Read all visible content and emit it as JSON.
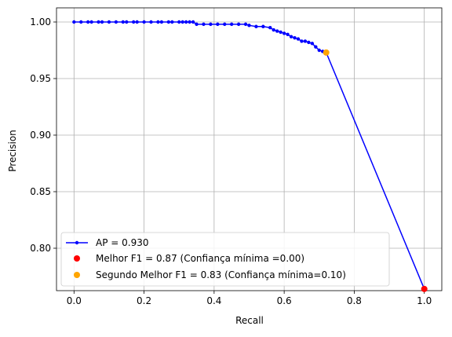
{
  "chart_data": {
    "type": "line",
    "title": "",
    "xlabel": "Recall",
    "ylabel": "Precision",
    "xlim": [
      -0.05,
      1.05
    ],
    "ylim": [
      0.7625,
      1.0125
    ],
    "grid": true,
    "xticks": [
      0.0,
      0.2,
      0.4,
      0.6,
      0.8,
      1.0
    ],
    "xtick_labels": [
      "0.0",
      "0.2",
      "0.4",
      "0.6",
      "0.8",
      "1.0"
    ],
    "yticks": [
      0.8,
      0.85,
      0.9,
      0.95,
      1.0
    ],
    "ytick_labels": [
      "0.80",
      "0.85",
      "0.90",
      "0.95",
      "1.00"
    ],
    "legend_position": "lower-left",
    "series": [
      {
        "name": "AP = 0.930",
        "kind": "line-marker",
        "color": "#0000ff",
        "points": [
          [
            0.0,
            1.0
          ],
          [
            0.02,
            1.0
          ],
          [
            0.04,
            1.0
          ],
          [
            0.05,
            1.0
          ],
          [
            0.07,
            1.0
          ],
          [
            0.08,
            1.0
          ],
          [
            0.1,
            1.0
          ],
          [
            0.12,
            1.0
          ],
          [
            0.14,
            1.0
          ],
          [
            0.15,
            1.0
          ],
          [
            0.17,
            1.0
          ],
          [
            0.18,
            1.0
          ],
          [
            0.2,
            1.0
          ],
          [
            0.22,
            1.0
          ],
          [
            0.24,
            1.0
          ],
          [
            0.25,
            1.0
          ],
          [
            0.27,
            1.0
          ],
          [
            0.28,
            1.0
          ],
          [
            0.3,
            1.0
          ],
          [
            0.31,
            1.0
          ],
          [
            0.32,
            1.0
          ],
          [
            0.33,
            1.0
          ],
          [
            0.34,
            1.0
          ],
          [
            0.35,
            0.998
          ],
          [
            0.37,
            0.998
          ],
          [
            0.39,
            0.998
          ],
          [
            0.41,
            0.998
          ],
          [
            0.43,
            0.998
          ],
          [
            0.45,
            0.998
          ],
          [
            0.47,
            0.998
          ],
          [
            0.49,
            0.998
          ],
          [
            0.5,
            0.997
          ],
          [
            0.52,
            0.996
          ],
          [
            0.54,
            0.996
          ],
          [
            0.56,
            0.995
          ],
          [
            0.57,
            0.993
          ],
          [
            0.58,
            0.992
          ],
          [
            0.59,
            0.991
          ],
          [
            0.6,
            0.99
          ],
          [
            0.61,
            0.989
          ],
          [
            0.62,
            0.987
          ],
          [
            0.63,
            0.986
          ],
          [
            0.64,
            0.985
          ],
          [
            0.65,
            0.983
          ],
          [
            0.66,
            0.983
          ],
          [
            0.67,
            0.982
          ],
          [
            0.68,
            0.981
          ],
          [
            0.69,
            0.978
          ],
          [
            0.7,
            0.975
          ],
          [
            0.71,
            0.974
          ],
          [
            0.72,
            0.973
          ],
          [
            1.0,
            0.764
          ]
        ]
      },
      {
        "name": "Melhor F1 = 0.87 (Confiança mínima =0.00)",
        "kind": "scatter",
        "color": "#ff0000",
        "points": [
          [
            1.0,
            0.764
          ]
        ]
      },
      {
        "name": "Segundo Melhor F1 = 0.83 (Confiança mínima=0.10)",
        "kind": "scatter",
        "color": "#ffa500",
        "points": [
          [
            0.72,
            0.973
          ]
        ]
      }
    ]
  }
}
